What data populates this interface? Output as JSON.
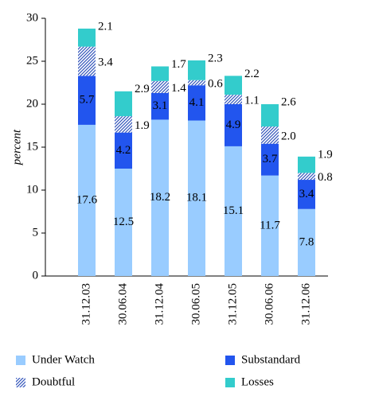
{
  "chart_data": {
    "type": "stacked_bar",
    "y_label": "percent",
    "categories": [
      "31.12.03",
      "30.06.04",
      "31.12.04",
      "30.06.05",
      "31.12.05",
      "30.06.06",
      "31.12.06"
    ],
    "series": [
      {
        "name": "Under Watch",
        "color": "#99ccff",
        "values": [
          17.6,
          12.5,
          18.2,
          18.1,
          15.1,
          11.7,
          7.8
        ]
      },
      {
        "name": "Substandard",
        "color": "#2255ee",
        "values": [
          5.7,
          4.2,
          3.1,
          4.1,
          4.9,
          3.7,
          3.4
        ]
      },
      {
        "name": "Doubtful",
        "color": "#3355bb",
        "values": [
          3.4,
          1.9,
          1.4,
          0.6,
          1.1,
          2.0,
          0.8
        ],
        "value_labels": [
          "3.4",
          "1.9",
          "1.4",
          "0.6",
          "1.1",
          "2.0",
          "0.8"
        ]
      },
      {
        "name": "Losses",
        "color": "#33cccc",
        "values": [
          2.1,
          2.9,
          1.7,
          2.3,
          2.2,
          2.6,
          1.9
        ]
      }
    ],
    "ylim": [
      0,
      30
    ],
    "yticks": [
      0,
      5,
      10,
      15,
      20,
      25,
      30
    ],
    "grid": false
  }
}
